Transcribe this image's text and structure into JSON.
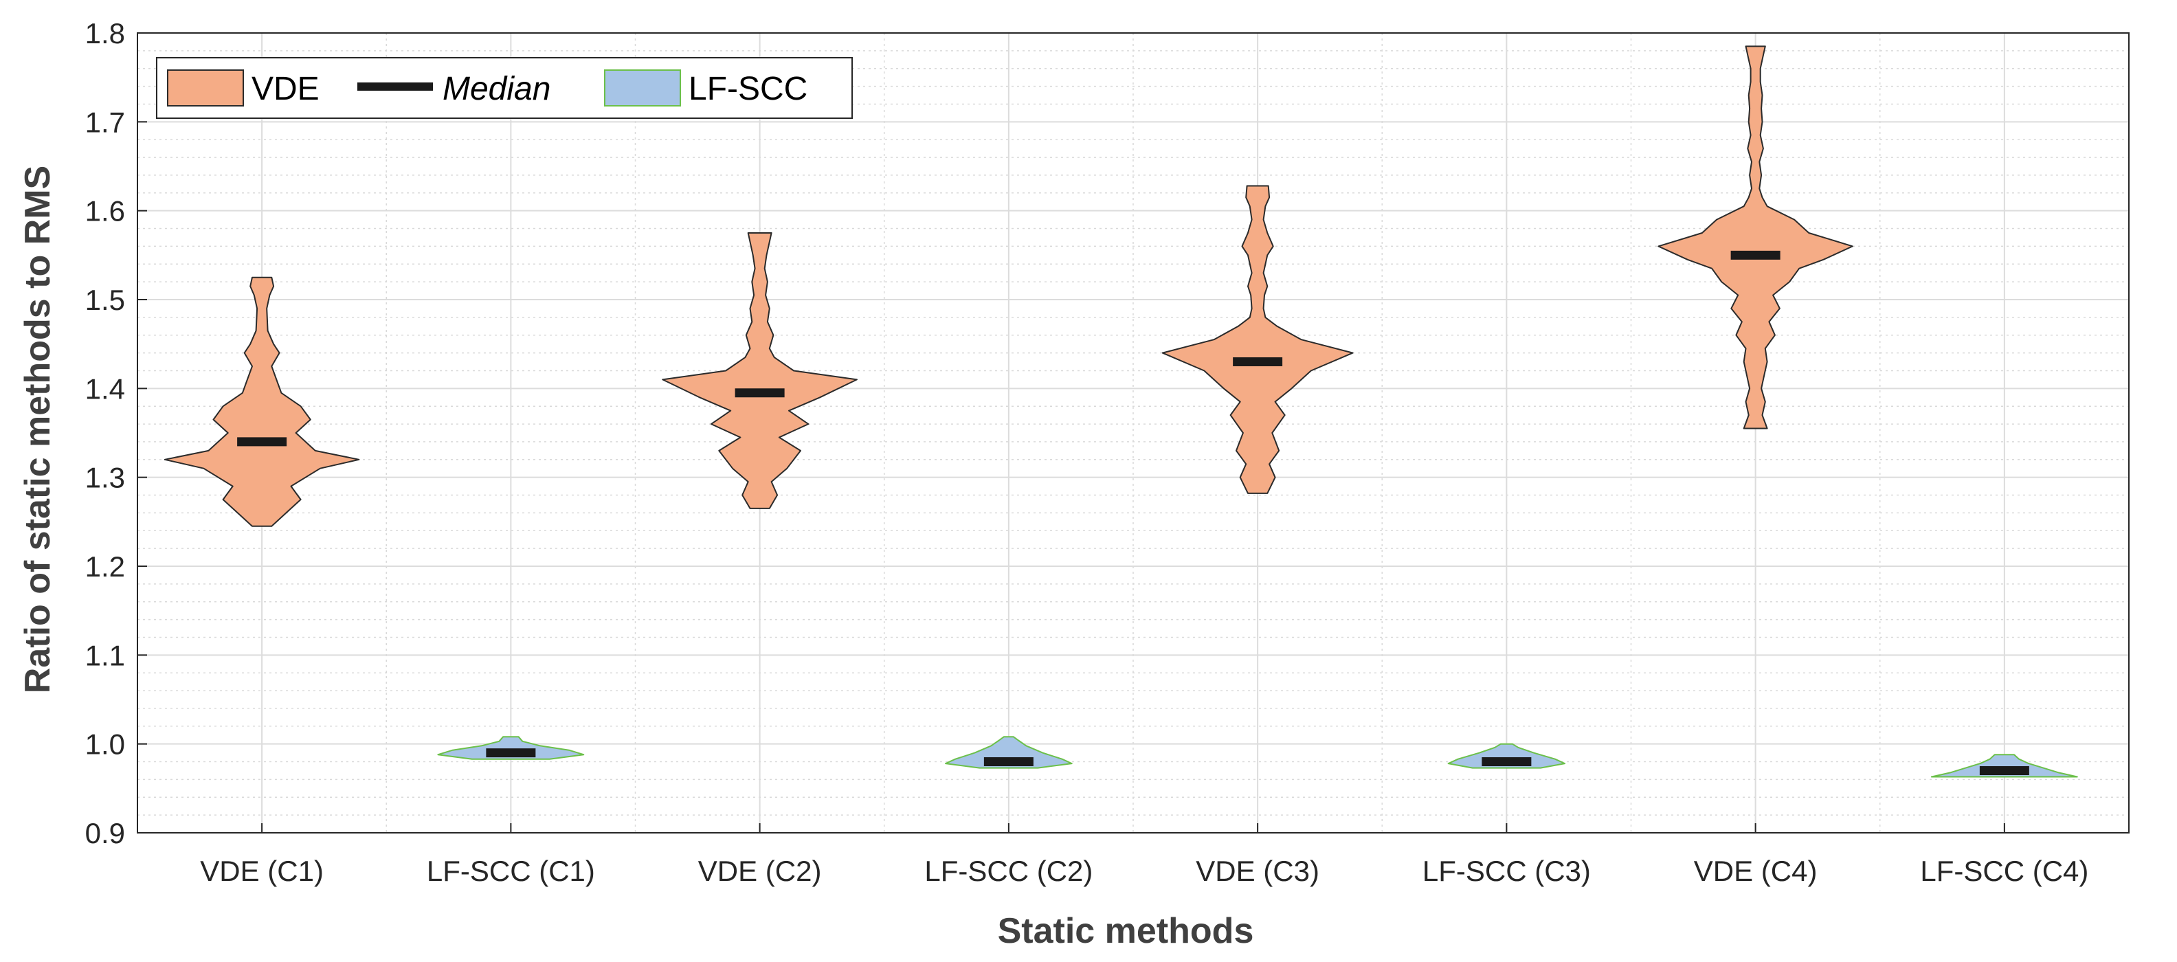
{
  "chart_data": {
    "type": "violin",
    "title": "",
    "xlabel": "Static methods",
    "ylabel": "Ratio of static methods to RMS",
    "ylim": [
      0.9,
      1.8
    ],
    "yticks": [
      "0.9",
      "1.0",
      "1.1",
      "1.2",
      "1.3",
      "1.4",
      "1.5",
      "1.6",
      "1.7",
      "1.8"
    ],
    "grid": true,
    "minor_grid": true,
    "legend_position": "top-left",
    "legend": [
      {
        "label": "VDE",
        "kind": "patch",
        "color": "#f5ac86"
      },
      {
        "label": "Median",
        "kind": "line",
        "color": "#1a1a1a"
      },
      {
        "label": "LF-SCC",
        "kind": "patch",
        "color": "#a6c4e6"
      }
    ],
    "colors": {
      "vde_fill": "#f5ac86",
      "vde_edge": "#2b2b2b",
      "lfscc_fill": "#a6c4e6",
      "lfscc_edge": "#6cc04a",
      "median": "#1a1a1a"
    },
    "categories": [
      "VDE (C1)",
      "LF-SCC (C1)",
      "VDE (C2)",
      "LF-SCC (C2)",
      "VDE (C3)",
      "LF-SCC (C3)",
      "VDE (C4)",
      "LF-SCC (C4)"
    ],
    "series": [
      {
        "category": "VDE (C1)",
        "group": "VDE",
        "min": 1.245,
        "max": 1.525,
        "median": 1.34,
        "profile": [
          [
            1.245,
            0.1
          ],
          [
            1.26,
            0.25
          ],
          [
            1.275,
            0.4
          ],
          [
            1.29,
            0.3
          ],
          [
            1.31,
            0.6
          ],
          [
            1.32,
            1.0
          ],
          [
            1.33,
            0.55
          ],
          [
            1.35,
            0.35
          ],
          [
            1.365,
            0.5
          ],
          [
            1.38,
            0.4
          ],
          [
            1.395,
            0.2
          ],
          [
            1.41,
            0.15
          ],
          [
            1.425,
            0.1
          ],
          [
            1.44,
            0.18
          ],
          [
            1.45,
            0.12
          ],
          [
            1.465,
            0.06
          ],
          [
            1.49,
            0.05
          ],
          [
            1.505,
            0.08
          ],
          [
            1.515,
            0.12
          ],
          [
            1.525,
            0.1
          ]
        ]
      },
      {
        "category": "LF-SCC (C1)",
        "group": "LF-SCC",
        "min": 0.983,
        "max": 1.008,
        "median": 0.99,
        "profile": [
          [
            0.983,
            0.4
          ],
          [
            0.988,
            0.75
          ],
          [
            0.993,
            0.6
          ],
          [
            0.998,
            0.3
          ],
          [
            1.003,
            0.12
          ],
          [
            1.008,
            0.08
          ]
        ]
      },
      {
        "category": "VDE (C2)",
        "group": "VDE",
        "min": 1.265,
        "max": 1.575,
        "median": 1.395,
        "profile": [
          [
            1.265,
            0.1
          ],
          [
            1.28,
            0.18
          ],
          [
            1.295,
            0.12
          ],
          [
            1.31,
            0.28
          ],
          [
            1.33,
            0.42
          ],
          [
            1.345,
            0.2
          ],
          [
            1.36,
            0.5
          ],
          [
            1.375,
            0.3
          ],
          [
            1.39,
            0.62
          ],
          [
            1.41,
            1.0
          ],
          [
            1.42,
            0.35
          ],
          [
            1.435,
            0.15
          ],
          [
            1.445,
            0.1
          ],
          [
            1.46,
            0.14
          ],
          [
            1.475,
            0.08
          ],
          [
            1.49,
            0.1
          ],
          [
            1.505,
            0.06
          ],
          [
            1.52,
            0.08
          ],
          [
            1.535,
            0.05
          ],
          [
            1.55,
            0.07
          ],
          [
            1.565,
            0.1
          ],
          [
            1.575,
            0.12
          ]
        ]
      },
      {
        "category": "LF-SCC (C2)",
        "group": "LF-SCC",
        "min": 0.973,
        "max": 1.008,
        "median": 0.98,
        "profile": [
          [
            0.973,
            0.3
          ],
          [
            0.978,
            0.65
          ],
          [
            0.983,
            0.55
          ],
          [
            0.99,
            0.35
          ],
          [
            0.998,
            0.18
          ],
          [
            1.004,
            0.1
          ],
          [
            1.008,
            0.05
          ]
        ]
      },
      {
        "category": "VDE (C3)",
        "group": "VDE",
        "min": 1.282,
        "max": 1.628,
        "median": 1.43,
        "profile": [
          [
            1.282,
            0.1
          ],
          [
            1.3,
            0.18
          ],
          [
            1.315,
            0.12
          ],
          [
            1.33,
            0.22
          ],
          [
            1.35,
            0.15
          ],
          [
            1.37,
            0.28
          ],
          [
            1.385,
            0.18
          ],
          [
            1.4,
            0.35
          ],
          [
            1.42,
            0.55
          ],
          [
            1.44,
            0.98
          ],
          [
            1.455,
            0.45
          ],
          [
            1.47,
            0.2
          ],
          [
            1.48,
            0.08
          ],
          [
            1.49,
            0.06
          ],
          [
            1.505,
            0.07
          ],
          [
            1.515,
            0.1
          ],
          [
            1.53,
            0.06
          ],
          [
            1.55,
            0.1
          ],
          [
            1.56,
            0.16
          ],
          [
            1.575,
            0.1
          ],
          [
            1.59,
            0.06
          ],
          [
            1.605,
            0.08
          ],
          [
            1.615,
            0.12
          ],
          [
            1.628,
            0.11
          ]
        ]
      },
      {
        "category": "LF-SCC (C3)",
        "group": "LF-SCC",
        "min": 0.973,
        "max": 1.0,
        "median": 0.98,
        "profile": [
          [
            0.973,
            0.35
          ],
          [
            0.978,
            0.6
          ],
          [
            0.983,
            0.5
          ],
          [
            0.99,
            0.28
          ],
          [
            0.996,
            0.12
          ],
          [
            1.0,
            0.06
          ]
        ]
      },
      {
        "category": "VDE (C4)",
        "group": "VDE",
        "min": 1.355,
        "max": 1.785,
        "median": 1.55,
        "profile": [
          [
            1.355,
            0.12
          ],
          [
            1.37,
            0.07
          ],
          [
            1.385,
            0.1
          ],
          [
            1.4,
            0.06
          ],
          [
            1.415,
            0.09
          ],
          [
            1.43,
            0.12
          ],
          [
            1.445,
            0.1
          ],
          [
            1.46,
            0.2
          ],
          [
            1.475,
            0.14
          ],
          [
            1.49,
            0.25
          ],
          [
            1.505,
            0.18
          ],
          [
            1.52,
            0.35
          ],
          [
            1.535,
            0.45
          ],
          [
            1.545,
            0.7
          ],
          [
            1.56,
            1.0
          ],
          [
            1.575,
            0.55
          ],
          [
            1.59,
            0.4
          ],
          [
            1.605,
            0.12
          ],
          [
            1.615,
            0.07
          ],
          [
            1.625,
            0.04
          ],
          [
            1.64,
            0.06
          ],
          [
            1.655,
            0.04
          ],
          [
            1.67,
            0.08
          ],
          [
            1.685,
            0.05
          ],
          [
            1.7,
            0.07
          ],
          [
            1.715,
            0.06
          ],
          [
            1.73,
            0.07
          ],
          [
            1.745,
            0.05
          ],
          [
            1.76,
            0.05
          ],
          [
            1.775,
            0.08
          ],
          [
            1.785,
            0.1
          ]
        ]
      },
      {
        "category": "LF-SCC (C4)",
        "group": "LF-SCC",
        "min": 0.963,
        "max": 0.988,
        "median": 0.97,
        "profile": [
          [
            0.963,
            0.75
          ],
          [
            0.968,
            0.55
          ],
          [
            0.973,
            0.4
          ],
          [
            0.978,
            0.25
          ],
          [
            0.983,
            0.15
          ],
          [
            0.988,
            0.1
          ]
        ]
      }
    ]
  }
}
